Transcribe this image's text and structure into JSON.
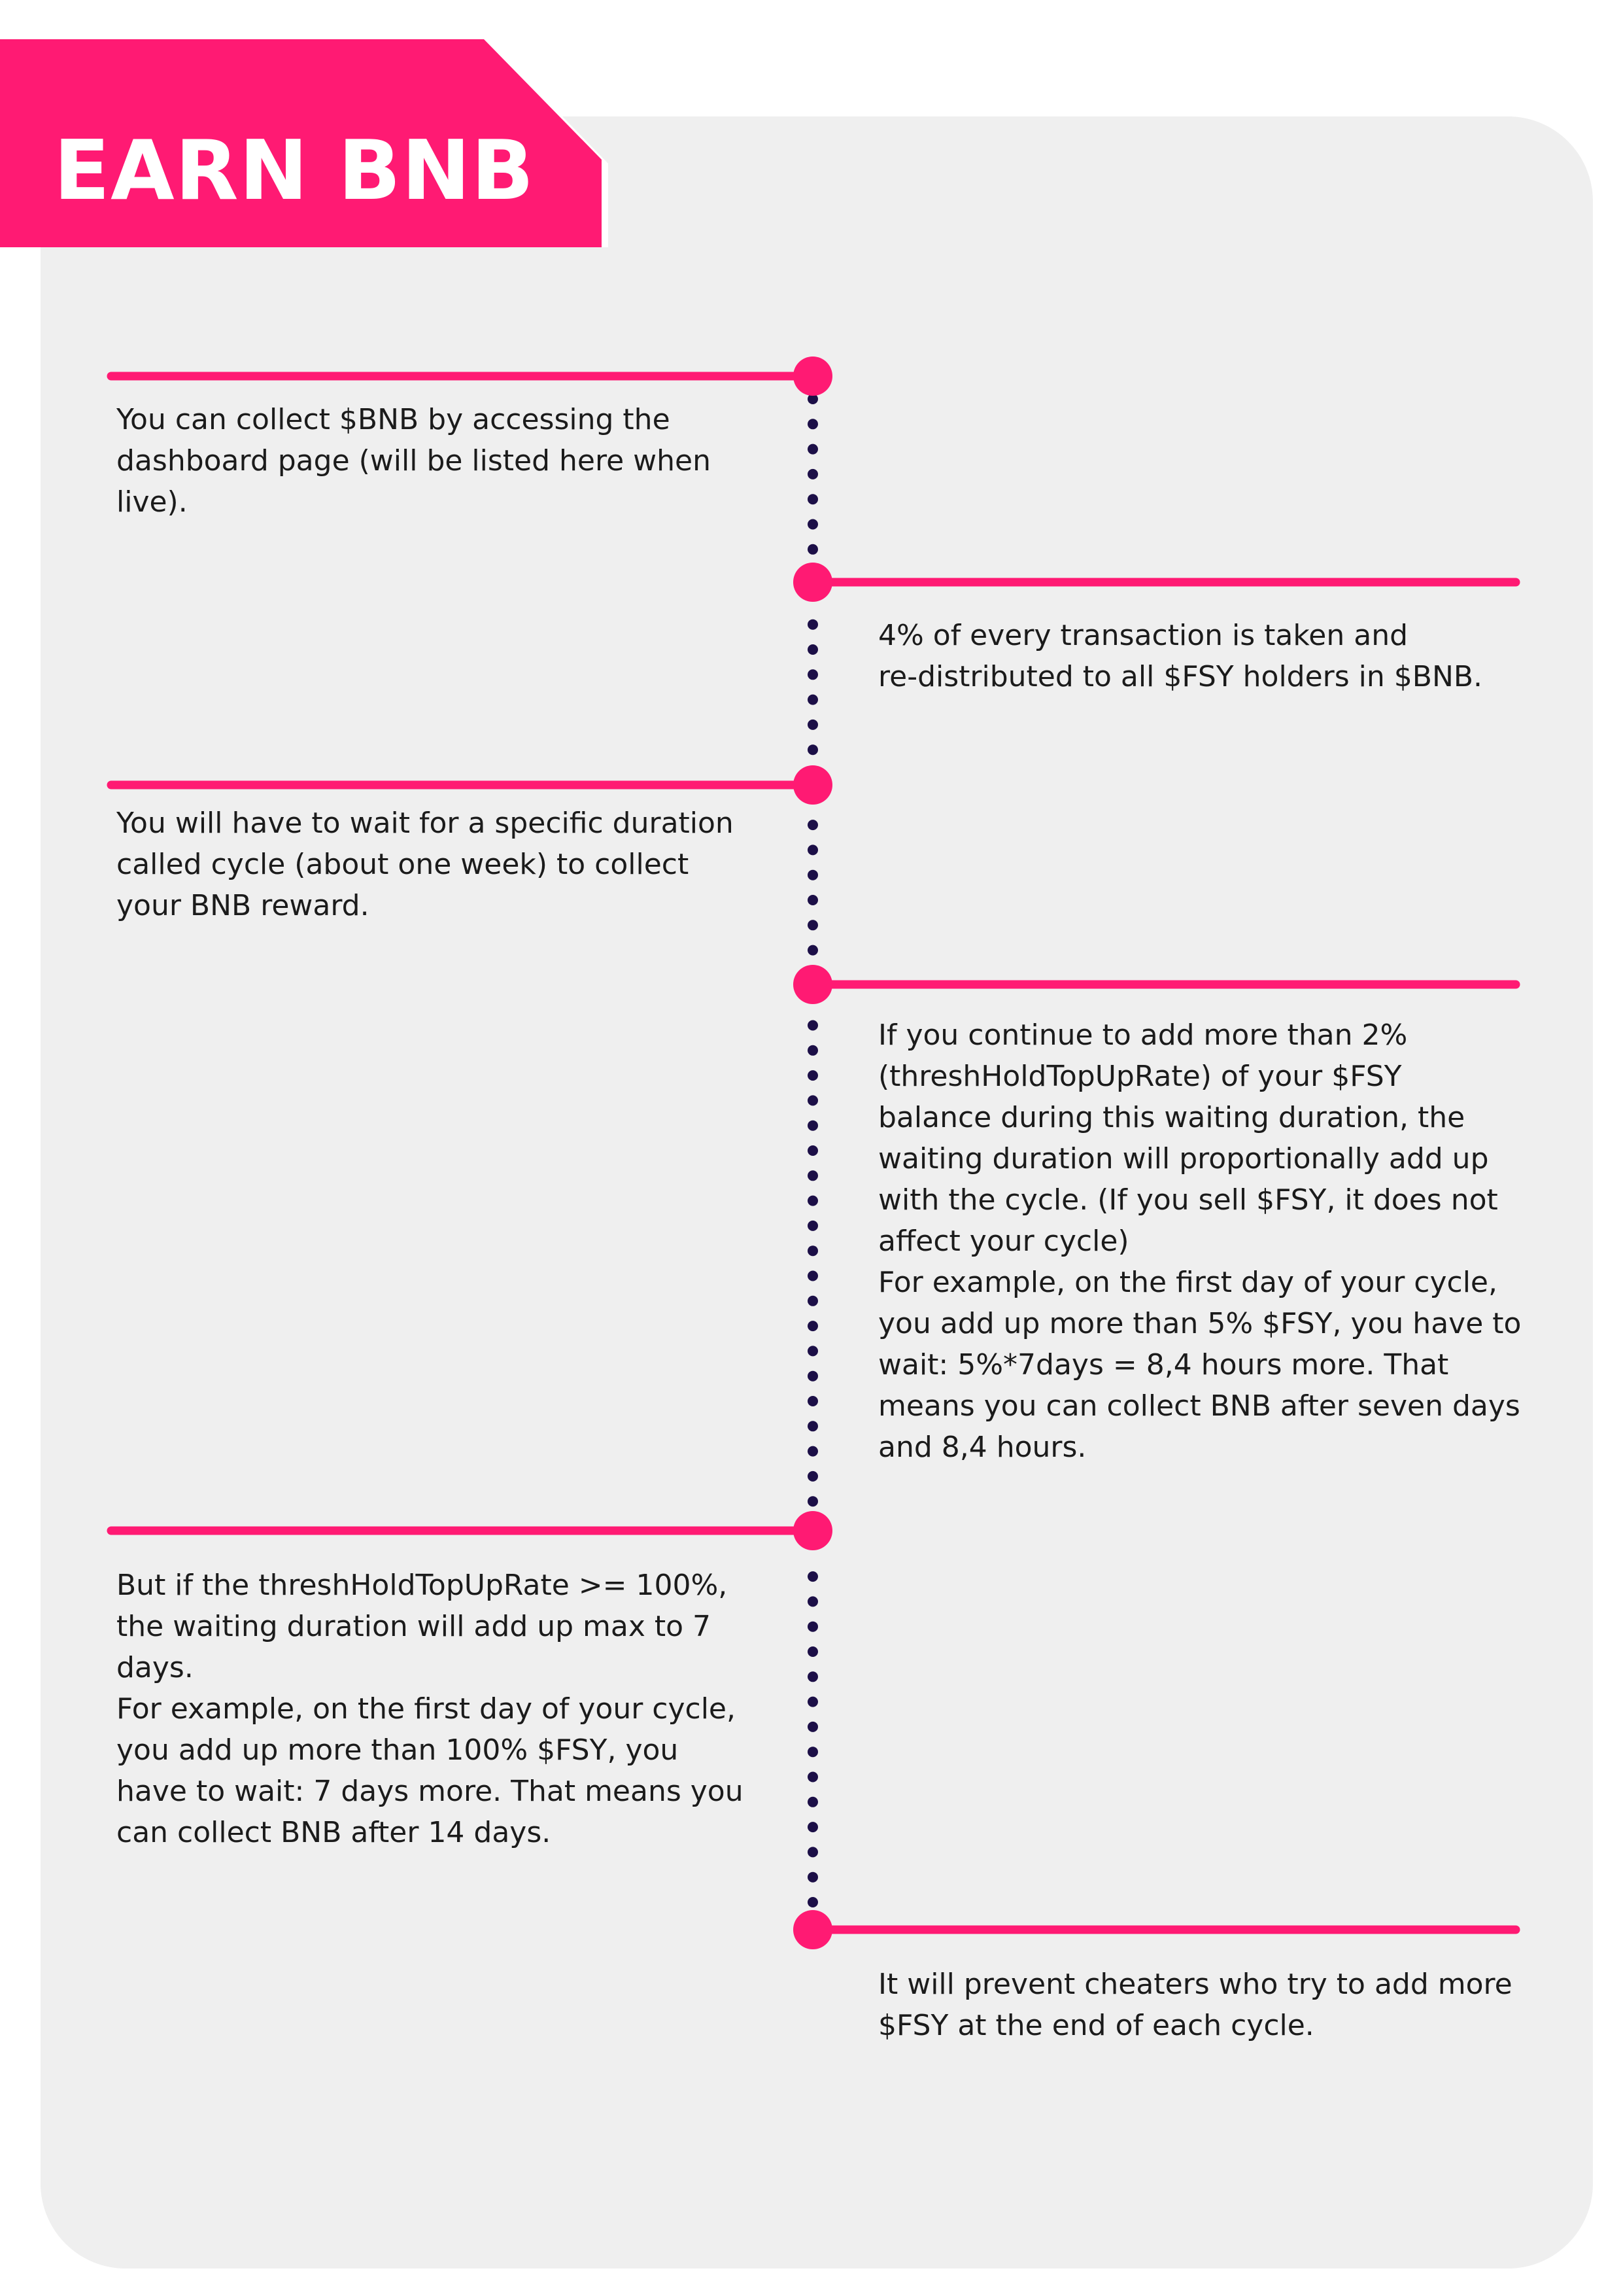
{
  "header": {
    "title": "EARN BNB"
  },
  "colors": {
    "accent": "#ff1a73",
    "dots": "#1c0f47",
    "panel": "#efefef",
    "text": "#1b1b1b"
  },
  "timeline": {
    "entries": [
      {
        "side": "left",
        "text": "You can collect $BNB by accessing the\ndashboard page (will be listed here when\nlive)."
      },
      {
        "side": "right",
        "text": "4% of every transaction is taken and\nre-distributed to all $FSY holders in $BNB."
      },
      {
        "side": "left",
        "text": "You will have to wait for a specific duration\ncalled cycle (about one week) to collect\nyour BNB reward."
      },
      {
        "side": "right",
        "text": "If you continue to add more than 2%\n(threshHoldTopUpRate) of your $FSY\nbalance during this waiting duration, the\nwaiting duration will proportionally add up\nwith the cycle. (If you sell $FSY, it does not\naffect your cycle)\nFor example, on the first day of your cycle,\nyou add up more than 5% $FSY, you have to\nwait: 5%*7days = 8,4 hours more. That\nmeans you can collect BNB after seven days\nand 8,4 hours."
      },
      {
        "side": "left",
        "text": "But if the threshHoldTopUpRate >= 100%,\nthe waiting duration will add up max to 7\ndays.\nFor example, on the first day of your cycle,\nyou add up more than 100% $FSY, you\nhave to wait: 7 days more. That means you\ncan collect BNB after 14 days."
      },
      {
        "side": "right",
        "text": "It will prevent cheaters who try to add more\n$FSY at the end of each cycle."
      }
    ]
  }
}
